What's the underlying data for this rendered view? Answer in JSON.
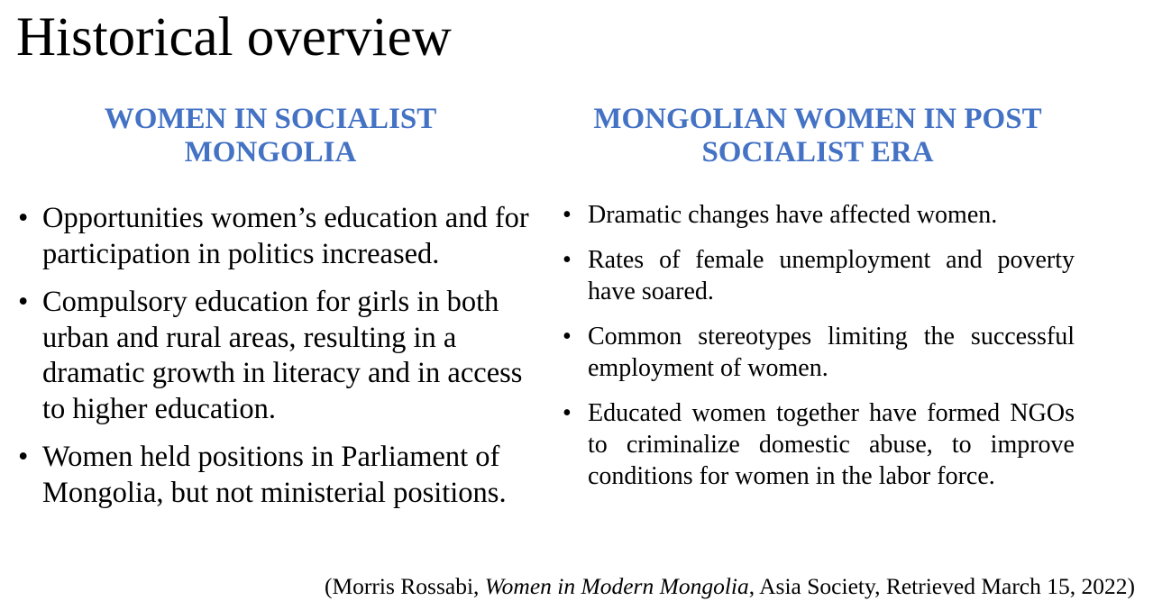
{
  "title": "Historical overview",
  "colors": {
    "heading_blue": "#4472C4",
    "text": "#000000"
  },
  "left_column": {
    "heading_line1": "WOMEN IN SOCIALIST",
    "heading_line2": "MONGOLIA",
    "bullet_symbol": "•",
    "bullets": [
      "Opportunities women’s education and for participation in politics increased.",
      "Compulsory education for girls in both urban and rural areas, resulting in a dramatic growth in literacy and in access to higher education.",
      "Women held positions in Parliament of Mongolia, but not ministerial positions."
    ]
  },
  "right_column": {
    "heading_line1": "MONGOLIAN WOMEN IN POST",
    "heading_line2": "SOCIALIST ERA",
    "bullet_symbol": "•",
    "bullets": [
      "Dramatic changes have affected women.",
      "Rates of female unemployment and poverty have soared.",
      "Common stereotypes limiting the successful employment of women.",
      "Educated women together have formed NGOs to criminalize domestic abuse, to improve conditions for women in the labor force."
    ]
  },
  "citation": {
    "prefix": "(Morris Rossabi, ",
    "work_title": "Women in Modern Mongolia",
    "suffix": ", Asia Society, Retrieved March 15, 2022)"
  }
}
